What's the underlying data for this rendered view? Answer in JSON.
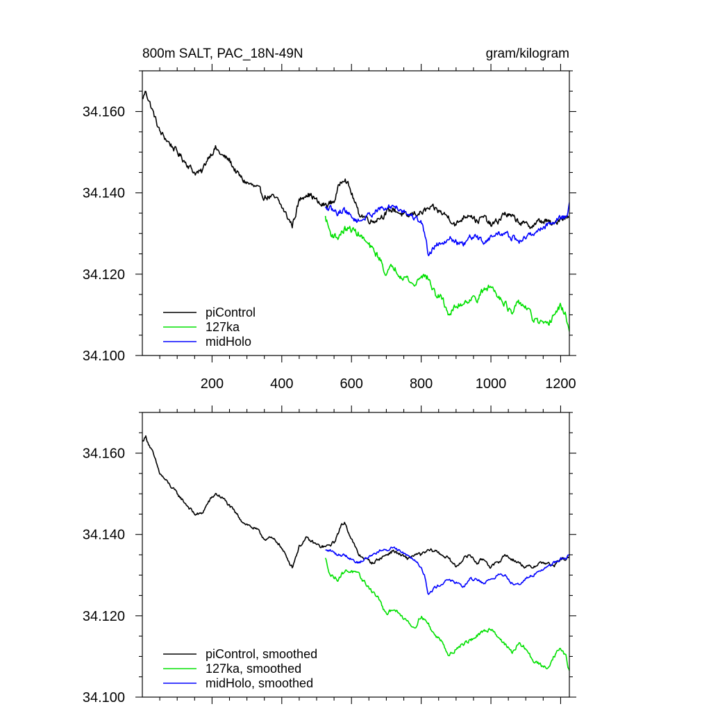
{
  "chart_data": [
    {
      "type": "line",
      "title_left": "800m SALT, PAC_18N-49N",
      "title_right": "gram/kilogram",
      "xlabel": "",
      "ylabel": "",
      "xlim": [
        0,
        1225
      ],
      "ylim": [
        34.1,
        34.17
      ],
      "x_ticks": [
        200,
        400,
        600,
        800,
        1000,
        1200
      ],
      "y_ticks": [
        34.1,
        34.12,
        34.14,
        34.16
      ],
      "y_tick_labels": [
        "34.100",
        "34.120",
        "34.140",
        "34.160"
      ],
      "x_tick_labels": [
        "200",
        "400",
        "600",
        "800",
        "1000",
        "1200"
      ],
      "legend": [
        "piControl",
        "127ka",
        "midHolo"
      ],
      "legend_position": "bottom-left",
      "series": [
        {
          "name": "piControl",
          "color": "#000000",
          "noise": 0.0013,
          "x": [
            0,
            10,
            30,
            50,
            70,
            90,
            110,
            130,
            150,
            170,
            190,
            210,
            230,
            250,
            270,
            290,
            310,
            330,
            350,
            370,
            390,
            410,
            430,
            450,
            470,
            490,
            510,
            530,
            550,
            570,
            580,
            600,
            620,
            640,
            660,
            680,
            700,
            720,
            740,
            760,
            780,
            800,
            820,
            840,
            860,
            880,
            900,
            920,
            940,
            960,
            980,
            1000,
            1020,
            1040,
            1060,
            1080,
            1100,
            1120,
            1140,
            1160,
            1180,
            1200,
            1225
          ],
          "values": [
            34.163,
            34.165,
            34.16,
            34.155,
            34.153,
            34.151,
            34.149,
            34.147,
            34.145,
            34.145,
            34.149,
            34.151,
            34.149,
            34.148,
            34.145,
            34.143,
            34.142,
            34.141,
            34.139,
            34.139,
            34.138,
            34.135,
            34.132,
            34.138,
            34.14,
            34.139,
            34.137,
            34.137,
            34.138,
            34.143,
            34.144,
            34.14,
            34.135,
            34.134,
            34.133,
            34.134,
            34.135,
            34.136,
            34.135,
            34.134,
            34.135,
            34.135,
            34.136,
            34.136,
            34.135,
            34.134,
            34.132,
            34.134,
            34.135,
            34.133,
            34.134,
            34.132,
            34.133,
            34.135,
            34.134,
            34.133,
            34.132,
            34.132,
            34.133,
            34.133,
            34.132,
            34.134,
            34.134
          ]
        },
        {
          "name": "127ka",
          "color": "#00e000",
          "noise": 0.0014,
          "x": [
            525,
            540,
            560,
            580,
            600,
            620,
            640,
            660,
            680,
            700,
            720,
            740,
            760,
            780,
            800,
            820,
            840,
            860,
            880,
            900,
            920,
            940,
            960,
            980,
            1000,
            1020,
            1040,
            1060,
            1080,
            1100,
            1120,
            1140,
            1160,
            1180,
            1200,
            1215,
            1225
          ],
          "values": [
            34.134,
            34.13,
            34.129,
            34.131,
            34.131,
            34.13,
            34.128,
            34.126,
            34.124,
            34.12,
            34.122,
            34.12,
            34.119,
            34.117,
            34.12,
            34.119,
            34.115,
            34.114,
            34.11,
            34.112,
            34.113,
            34.114,
            34.114,
            34.116,
            34.117,
            34.115,
            34.113,
            34.11,
            34.113,
            34.112,
            34.109,
            34.108,
            34.107,
            34.11,
            34.112,
            34.11,
            34.106
          ]
        },
        {
          "name": "midHolo",
          "color": "#0000ff",
          "noise": 0.0012,
          "x": [
            525,
            540,
            560,
            580,
            600,
            620,
            640,
            660,
            680,
            700,
            720,
            740,
            760,
            780,
            800,
            810,
            820,
            840,
            860,
            880,
            900,
            920,
            940,
            960,
            980,
            1000,
            1020,
            1040,
            1060,
            1080,
            1100,
            1120,
            1140,
            1160,
            1180,
            1200,
            1215,
            1225
          ],
          "values": [
            34.136,
            34.136,
            34.135,
            34.136,
            34.134,
            34.133,
            34.134,
            34.135,
            34.136,
            34.136,
            34.137,
            34.136,
            34.135,
            34.134,
            34.133,
            34.13,
            34.125,
            34.127,
            34.128,
            34.129,
            34.128,
            34.127,
            34.129,
            34.129,
            34.128,
            34.129,
            34.13,
            34.13,
            34.129,
            34.128,
            34.129,
            34.13,
            34.131,
            34.132,
            34.133,
            34.134,
            34.134,
            34.137
          ]
        }
      ]
    },
    {
      "type": "line",
      "xlabel": "",
      "ylabel": "",
      "xlim": [
        0,
        1225
      ],
      "ylim": [
        34.1,
        34.17
      ],
      "x_ticks": [
        200,
        400,
        600,
        800,
        1000,
        1200
      ],
      "y_ticks": [
        34.1,
        34.12,
        34.14,
        34.16
      ],
      "y_tick_labels": [
        "34.100",
        "34.120",
        "34.140",
        "34.160"
      ],
      "legend": [
        "piControl, smoothed",
        "127ka, smoothed",
        "midHolo, smoothed"
      ],
      "legend_position": "bottom-left",
      "series": [
        {
          "name": "piControl, smoothed",
          "color": "#000000",
          "noise": 0.0007,
          "x": [
            0,
            10,
            30,
            50,
            70,
            90,
            110,
            130,
            150,
            170,
            190,
            210,
            230,
            250,
            270,
            290,
            310,
            330,
            350,
            370,
            390,
            410,
            430,
            450,
            470,
            490,
            510,
            530,
            550,
            570,
            580,
            600,
            620,
            640,
            660,
            680,
            700,
            720,
            740,
            760,
            780,
            800,
            820,
            840,
            860,
            880,
            900,
            920,
            940,
            960,
            980,
            1000,
            1020,
            1040,
            1060,
            1080,
            1100,
            1120,
            1140,
            1160,
            1180,
            1200,
            1225
          ],
          "values": [
            34.163,
            34.164,
            34.16,
            34.155,
            34.153,
            34.151,
            34.149,
            34.147,
            34.145,
            34.145,
            34.148,
            34.15,
            34.149,
            34.147,
            34.145,
            34.143,
            34.142,
            34.141,
            34.139,
            34.139,
            34.138,
            34.135,
            34.132,
            34.137,
            34.139,
            34.138,
            34.137,
            34.137,
            34.138,
            34.142,
            34.143,
            34.139,
            34.135,
            34.134,
            34.133,
            34.134,
            34.135,
            34.136,
            34.135,
            34.134,
            34.135,
            34.135,
            34.136,
            34.136,
            34.135,
            34.134,
            34.132,
            34.134,
            34.135,
            34.133,
            34.134,
            34.132,
            34.133,
            34.135,
            34.134,
            34.133,
            34.132,
            34.132,
            34.133,
            34.133,
            34.132,
            34.134,
            34.134
          ]
        },
        {
          "name": "127ka, smoothed",
          "color": "#00e000",
          "noise": 0.0008,
          "x": [
            525,
            540,
            560,
            580,
            600,
            620,
            640,
            660,
            680,
            700,
            720,
            740,
            760,
            780,
            800,
            820,
            840,
            860,
            880,
            900,
            920,
            940,
            960,
            980,
            1000,
            1020,
            1040,
            1060,
            1080,
            1100,
            1120,
            1140,
            1160,
            1180,
            1200,
            1215,
            1225
          ],
          "values": [
            34.134,
            34.13,
            34.129,
            34.131,
            34.131,
            34.13,
            34.128,
            34.126,
            34.124,
            34.12,
            34.122,
            34.12,
            34.119,
            34.117,
            34.12,
            34.118,
            34.115,
            34.114,
            34.11,
            34.112,
            34.113,
            34.114,
            34.115,
            34.116,
            34.117,
            34.115,
            34.113,
            34.111,
            34.113,
            34.112,
            34.109,
            34.108,
            34.107,
            34.11,
            34.112,
            34.11,
            34.106
          ]
        },
        {
          "name": "midHolo, smoothed",
          "color": "#0000ff",
          "noise": 0.0006,
          "x": [
            525,
            540,
            560,
            580,
            600,
            620,
            640,
            660,
            680,
            700,
            720,
            740,
            760,
            780,
            800,
            810,
            820,
            840,
            860,
            880,
            900,
            920,
            940,
            960,
            980,
            1000,
            1020,
            1040,
            1060,
            1080,
            1100,
            1120,
            1140,
            1160,
            1180,
            1200,
            1215,
            1225
          ],
          "values": [
            34.136,
            34.136,
            34.135,
            34.135,
            34.134,
            34.133,
            34.134,
            34.135,
            34.136,
            34.136,
            34.137,
            34.136,
            34.135,
            34.134,
            34.132,
            34.13,
            34.125,
            34.127,
            34.128,
            34.129,
            34.128,
            34.127,
            34.129,
            34.129,
            34.128,
            34.129,
            34.13,
            34.13,
            34.128,
            34.128,
            34.129,
            34.13,
            34.131,
            34.132,
            34.133,
            34.134,
            34.134,
            34.135
          ]
        }
      ]
    }
  ]
}
